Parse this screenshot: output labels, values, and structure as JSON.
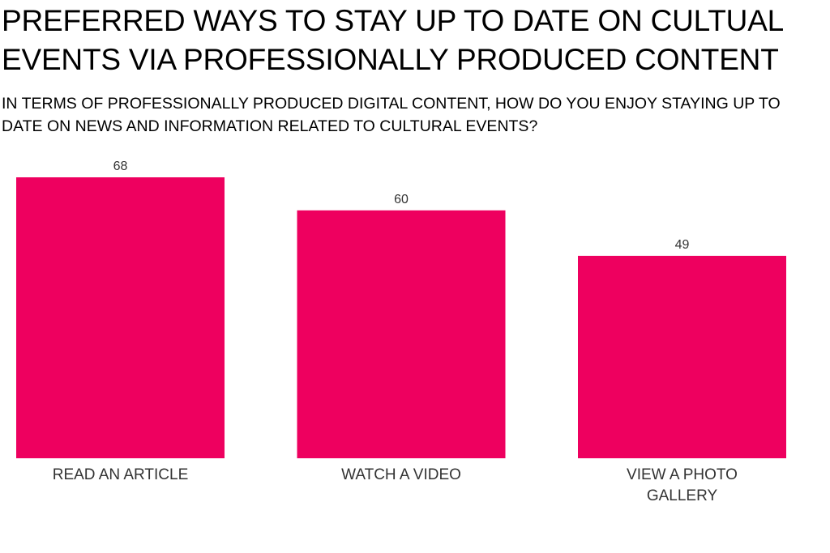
{
  "title": "PREFERRED WAYS TO STAY UP TO DATE ON CULTUAL EVENTS VIA PROFESSIONALLY PRODUCED CONTENT",
  "subtitle": "IN TERMS OF PROFESSIONALLY PRODUCED DIGITAL CONTENT, HOW DO YOU ENJOY STAYING UP TO DATE ON NEWS AND INFORMATION RELATED TO CULTURAL EVENTS?",
  "colors": {
    "bar": "#ee005f",
    "value_label": "#333333",
    "category_label": "#333333"
  },
  "chart_data": {
    "type": "bar",
    "categories": [
      [
        "READ AN ARTICLE"
      ],
      [
        "WATCH A VIDEO"
      ],
      [
        "VIEW A PHOTO",
        "GALLERY"
      ]
    ],
    "values": [
      68,
      60,
      49
    ],
    "ylim": [
      0,
      68
    ],
    "grid": false,
    "legend": "none"
  }
}
